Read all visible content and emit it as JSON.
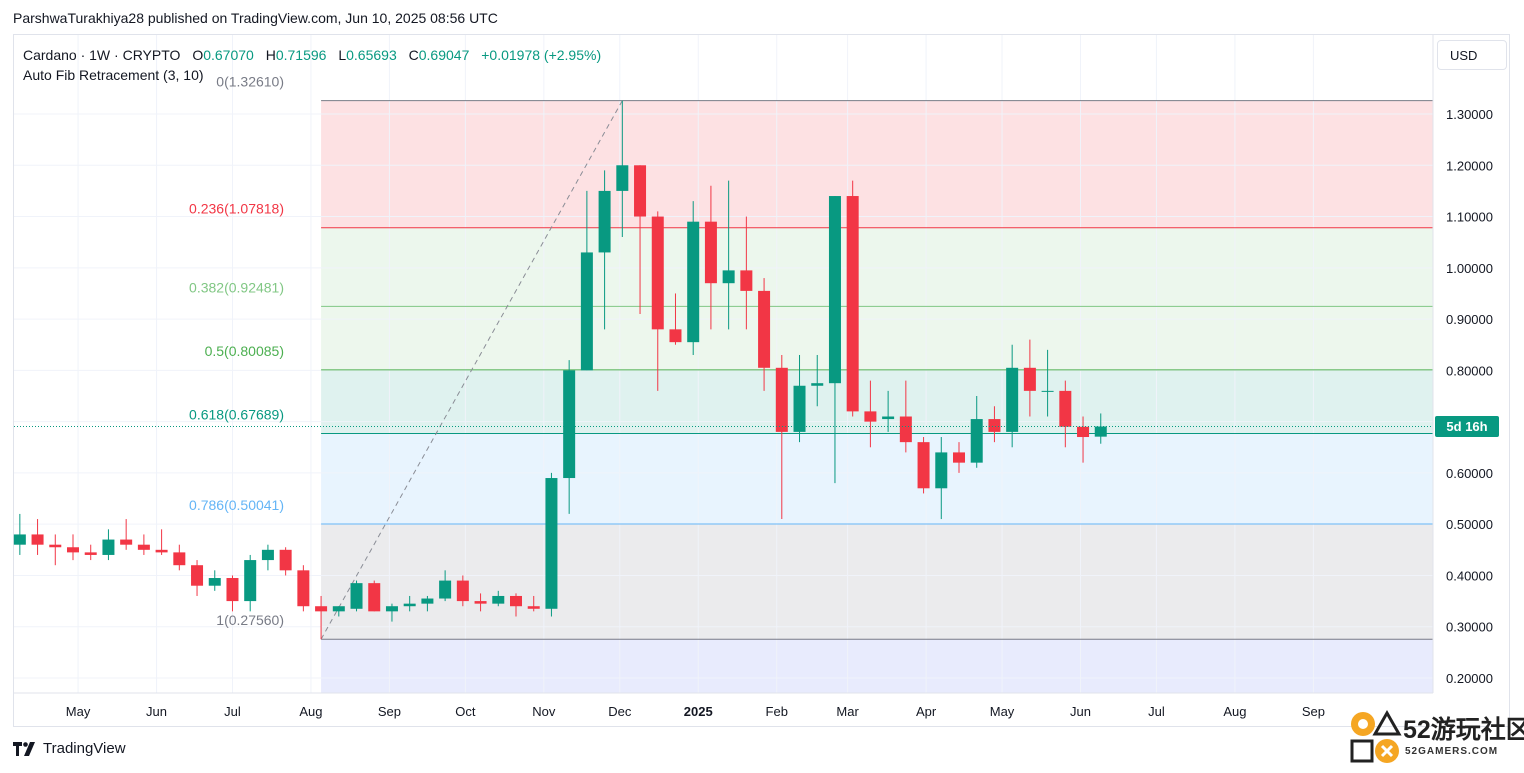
{
  "header": {
    "publisher": "ParshwaTurakhiya28 published on TradingView.com, Jun 10, 2025 08:56 UTC"
  },
  "legend": {
    "symbol": "Cardano · 1W · CRYPTO",
    "o_label": "O",
    "o_value": "0.67070",
    "h_label": "H",
    "h_value": "0.71596",
    "l_label": "L",
    "l_value": "0.65693",
    "c_label": "C",
    "c_value": "0.69047",
    "change": "+0.01978 (+2.95%)",
    "indicator": "Auto Fib Retracement (3, 10)"
  },
  "toolbar": {
    "currency": "USD"
  },
  "countdown": "5d 16h",
  "footer": {
    "brand": "TradingView"
  },
  "watermark": {
    "name": "52游玩社区",
    "sub": "52GAMERS.COM"
  },
  "colors": {
    "up": "#089981",
    "down": "#f23645",
    "background": "#ffffff"
  },
  "chart_data": {
    "type": "candlestick",
    "ylim": [
      0.17,
      1.4
    ],
    "y_ticks": [
      "1.30000",
      "1.20000",
      "1.10000",
      "1.00000",
      "0.90000",
      "0.80000",
      "0.70000",
      "0.60000",
      "0.50000",
      "0.40000",
      "0.30000",
      "0.20000"
    ],
    "y_tick_values": [
      1.3,
      1.2,
      1.1,
      1.0,
      0.9,
      0.8,
      0.7,
      0.6,
      0.5,
      0.4,
      0.3,
      0.2
    ],
    "x_labels": [
      "May",
      "Jun",
      "Jul",
      "Aug",
      "Sep",
      "Oct",
      "Nov",
      "Dec",
      "2025",
      "Feb",
      "Mar",
      "Apr",
      "May",
      "Jun",
      "Jul",
      "Aug",
      "Sep"
    ],
    "x_label_dates": [
      "2024-05-01",
      "2024-06-01",
      "2024-07-01",
      "2024-08-01",
      "2024-09-01",
      "2024-10-01",
      "2024-11-01",
      "2024-12-01",
      "2025-01-01",
      "2025-02-01",
      "2025-03-01",
      "2025-04-01",
      "2025-05-01",
      "2025-06-01",
      "2025-07-01",
      "2025-08-01",
      "2025-09-01"
    ],
    "fib_levels": [
      {
        "label": "0(1.32610)",
        "value": 1.3261,
        "color": "#787b86"
      },
      {
        "label": "0.236(1.07818)",
        "value": 1.07818,
        "color": "#f23645"
      },
      {
        "label": "0.382(0.92481)",
        "value": 0.92481,
        "color": "#81c784"
      },
      {
        "label": "0.5(0.80085)",
        "value": 0.80085,
        "color": "#4caf50"
      },
      {
        "label": "0.618(0.67689)",
        "value": 0.67689,
        "color": "#089981"
      },
      {
        "label": "0.786(0.50041)",
        "value": 0.50041,
        "color": "#64b5f6"
      },
      {
        "label": "1(0.27560)",
        "value": 0.2756,
        "color": "#787b86"
      }
    ],
    "fib_start": "2024-08-05",
    "fib_trend": {
      "from": [
        "2024-08-05",
        0.2756
      ],
      "to": [
        "2024-12-02",
        1.3261
      ]
    },
    "last_close": 0.69047,
    "candles": [
      {
        "date": "2024-04-08",
        "o": 0.46,
        "h": 0.52,
        "l": 0.44,
        "c": 0.48
      },
      {
        "date": "2024-04-15",
        "o": 0.48,
        "h": 0.51,
        "l": 0.44,
        "c": 0.46
      },
      {
        "date": "2024-04-22",
        "o": 0.46,
        "h": 0.48,
        "l": 0.42,
        "c": 0.455
      },
      {
        "date": "2024-04-29",
        "o": 0.455,
        "h": 0.48,
        "l": 0.43,
        "c": 0.445
      },
      {
        "date": "2024-05-06",
        "o": 0.445,
        "h": 0.46,
        "l": 0.43,
        "c": 0.44
      },
      {
        "date": "2024-05-13",
        "o": 0.44,
        "h": 0.49,
        "l": 0.43,
        "c": 0.47
      },
      {
        "date": "2024-05-20",
        "o": 0.47,
        "h": 0.51,
        "l": 0.45,
        "c": 0.46
      },
      {
        "date": "2024-05-27",
        "o": 0.46,
        "h": 0.48,
        "l": 0.44,
        "c": 0.45
      },
      {
        "date": "2024-06-03",
        "o": 0.45,
        "h": 0.49,
        "l": 0.44,
        "c": 0.445
      },
      {
        "date": "2024-06-10",
        "o": 0.445,
        "h": 0.46,
        "l": 0.41,
        "c": 0.42
      },
      {
        "date": "2024-06-17",
        "o": 0.42,
        "h": 0.43,
        "l": 0.36,
        "c": 0.38
      },
      {
        "date": "2024-06-24",
        "o": 0.38,
        "h": 0.41,
        "l": 0.37,
        "c": 0.395
      },
      {
        "date": "2024-07-01",
        "o": 0.395,
        "h": 0.4,
        "l": 0.33,
        "c": 0.35
      },
      {
        "date": "2024-07-08",
        "o": 0.35,
        "h": 0.44,
        "l": 0.33,
        "c": 0.43
      },
      {
        "date": "2024-07-15",
        "o": 0.43,
        "h": 0.46,
        "l": 0.41,
        "c": 0.45
      },
      {
        "date": "2024-07-22",
        "o": 0.45,
        "h": 0.455,
        "l": 0.4,
        "c": 0.41
      },
      {
        "date": "2024-07-29",
        "o": 0.41,
        "h": 0.42,
        "l": 0.33,
        "c": 0.34
      },
      {
        "date": "2024-08-05",
        "o": 0.34,
        "h": 0.36,
        "l": 0.2756,
        "c": 0.33
      },
      {
        "date": "2024-08-12",
        "o": 0.33,
        "h": 0.34,
        "l": 0.32,
        "c": 0.34
      },
      {
        "date": "2024-08-19",
        "o": 0.335,
        "h": 0.39,
        "l": 0.33,
        "c": 0.385
      },
      {
        "date": "2024-08-26",
        "o": 0.385,
        "h": 0.39,
        "l": 0.33,
        "c": 0.33
      },
      {
        "date": "2024-09-02",
        "o": 0.33,
        "h": 0.345,
        "l": 0.31,
        "c": 0.34
      },
      {
        "date": "2024-09-09",
        "o": 0.34,
        "h": 0.36,
        "l": 0.33,
        "c": 0.345
      },
      {
        "date": "2024-09-16",
        "o": 0.345,
        "h": 0.36,
        "l": 0.33,
        "c": 0.355
      },
      {
        "date": "2024-09-23",
        "o": 0.355,
        "h": 0.41,
        "l": 0.35,
        "c": 0.39
      },
      {
        "date": "2024-09-30",
        "o": 0.39,
        "h": 0.4,
        "l": 0.34,
        "c": 0.35
      },
      {
        "date": "2024-10-07",
        "o": 0.35,
        "h": 0.365,
        "l": 0.33,
        "c": 0.345
      },
      {
        "date": "2024-10-14",
        "o": 0.345,
        "h": 0.37,
        "l": 0.34,
        "c": 0.36
      },
      {
        "date": "2024-10-21",
        "o": 0.36,
        "h": 0.365,
        "l": 0.32,
        "c": 0.34
      },
      {
        "date": "2024-10-28",
        "o": 0.34,
        "h": 0.36,
        "l": 0.33,
        "c": 0.335
      },
      {
        "date": "2024-11-04",
        "o": 0.335,
        "h": 0.6,
        "l": 0.32,
        "c": 0.59
      },
      {
        "date": "2024-11-11",
        "o": 0.59,
        "h": 0.82,
        "l": 0.52,
        "c": 0.8
      },
      {
        "date": "2024-11-18",
        "o": 0.8,
        "h": 1.15,
        "l": 0.8,
        "c": 1.03
      },
      {
        "date": "2024-11-25",
        "o": 1.03,
        "h": 1.19,
        "l": 0.88,
        "c": 1.15
      },
      {
        "date": "2024-12-02",
        "o": 1.15,
        "h": 1.3261,
        "l": 1.06,
        "c": 1.2
      },
      {
        "date": "2024-12-09",
        "o": 1.2,
        "h": 1.2,
        "l": 0.91,
        "c": 1.1
      },
      {
        "date": "2024-12-16",
        "o": 1.1,
        "h": 1.11,
        "l": 0.76,
        "c": 0.88
      },
      {
        "date": "2024-12-23",
        "o": 0.88,
        "h": 0.95,
        "l": 0.85,
        "c": 0.855
      },
      {
        "date": "2024-12-30",
        "o": 0.855,
        "h": 1.13,
        "l": 0.83,
        "c": 1.09
      },
      {
        "date": "2025-01-06",
        "o": 1.09,
        "h": 1.16,
        "l": 0.88,
        "c": 0.97
      },
      {
        "date": "2025-01-13",
        "o": 0.97,
        "h": 1.17,
        "l": 0.88,
        "c": 0.995
      },
      {
        "date": "2025-01-20",
        "o": 0.995,
        "h": 1.1,
        "l": 0.88,
        "c": 0.955
      },
      {
        "date": "2025-01-27",
        "o": 0.955,
        "h": 0.98,
        "l": 0.76,
        "c": 0.805
      },
      {
        "date": "2025-02-03",
        "o": 0.805,
        "h": 0.83,
        "l": 0.51,
        "c": 0.68
      },
      {
        "date": "2025-02-10",
        "o": 0.68,
        "h": 0.83,
        "l": 0.66,
        "c": 0.77
      },
      {
        "date": "2025-02-17",
        "o": 0.77,
        "h": 0.83,
        "l": 0.73,
        "c": 0.775
      },
      {
        "date": "2025-02-24",
        "o": 0.775,
        "h": 1.14,
        "l": 0.58,
        "c": 1.14
      },
      {
        "date": "2025-03-03",
        "o": 1.14,
        "h": 1.17,
        "l": 0.71,
        "c": 0.72
      },
      {
        "date": "2025-03-10",
        "o": 0.72,
        "h": 0.78,
        "l": 0.65,
        "c": 0.7
      },
      {
        "date": "2025-03-17",
        "o": 0.705,
        "h": 0.76,
        "l": 0.68,
        "c": 0.71
      },
      {
        "date": "2025-03-24",
        "o": 0.71,
        "h": 0.78,
        "l": 0.64,
        "c": 0.66
      },
      {
        "date": "2025-03-31",
        "o": 0.66,
        "h": 0.67,
        "l": 0.56,
        "c": 0.57
      },
      {
        "date": "2025-04-07",
        "o": 0.57,
        "h": 0.67,
        "l": 0.51,
        "c": 0.64
      },
      {
        "date": "2025-04-14",
        "o": 0.64,
        "h": 0.66,
        "l": 0.6,
        "c": 0.62
      },
      {
        "date": "2025-04-21",
        "o": 0.62,
        "h": 0.75,
        "l": 0.61,
        "c": 0.705
      },
      {
        "date": "2025-04-28",
        "o": 0.705,
        "h": 0.73,
        "l": 0.66,
        "c": 0.68
      },
      {
        "date": "2025-05-05",
        "o": 0.68,
        "h": 0.85,
        "l": 0.65,
        "c": 0.805
      },
      {
        "date": "2025-05-12",
        "o": 0.805,
        "h": 0.86,
        "l": 0.71,
        "c": 0.76
      },
      {
        "date": "2025-05-19",
        "o": 0.76,
        "h": 0.84,
        "l": 0.71,
        "c": 0.76
      },
      {
        "date": "2025-05-26",
        "o": 0.76,
        "h": 0.78,
        "l": 0.65,
        "c": 0.69
      },
      {
        "date": "2025-06-02",
        "o": 0.69,
        "h": 0.71,
        "l": 0.62,
        "c": 0.67
      },
      {
        "date": "2025-06-09",
        "o": 0.6707,
        "h": 0.71596,
        "l": 0.65693,
        "c": 0.69047
      }
    ]
  }
}
